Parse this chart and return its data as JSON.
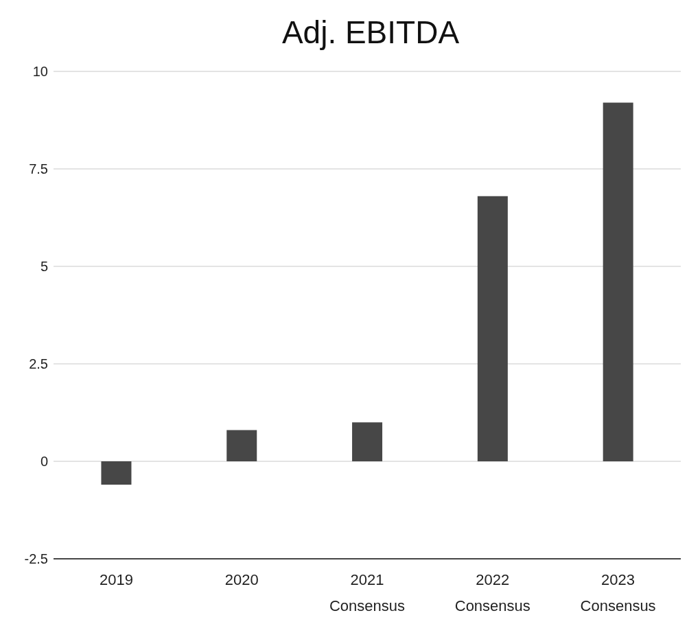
{
  "chart_data": {
    "type": "bar",
    "title": "Adj. EBITDA",
    "categories": [
      "2019",
      "2020",
      "2021\nConsensus",
      "2022\nConsensus",
      "2023\nConsensus"
    ],
    "values": [
      -0.6,
      0.8,
      1.0,
      6.8,
      9.2
    ],
    "color": "#474747",
    "ylim": [
      -2.5,
      10
    ],
    "yticks": [
      -2.5,
      0,
      2.5,
      5,
      7.5,
      10
    ],
    "grid": "y"
  }
}
